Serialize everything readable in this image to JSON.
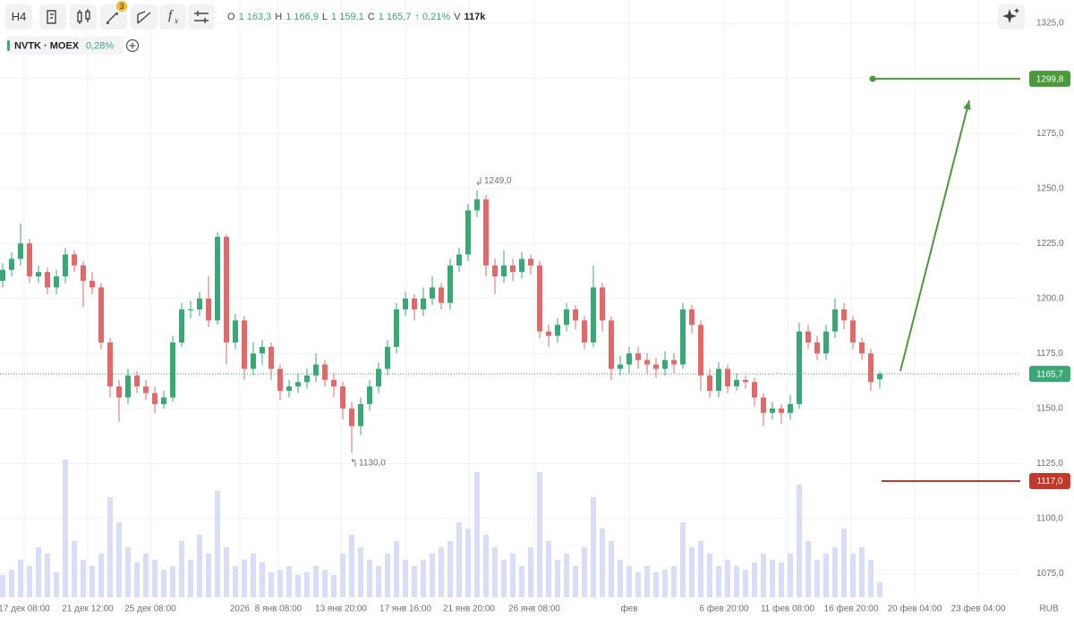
{
  "toolbar": {
    "timeframe": "H4",
    "badge": "3",
    "function_f": "f",
    "function_x": "x"
  },
  "chart_data": {
    "type": "candlestick",
    "symbol": "NVTK · MOEX",
    "symbol_change": "0,28%",
    "ohlc_header": [
      {
        "key": "O",
        "value": "1 163,3"
      },
      {
        "key": "H",
        "value": "1 166,9"
      },
      {
        "key": "L",
        "value": "1 159,1"
      },
      {
        "key": "C",
        "value": "1 165,7"
      }
    ],
    "header_change": "↑ 0,21%",
    "header_volume": {
      "key": "V",
      "value": "117k"
    },
    "currency": "RUB",
    "up_color": "#3aa876",
    "down_color": "#e06a6a",
    "volume_color": "#d9def6",
    "open": [
      1208,
      1213,
      1218,
      1225,
      1210,
      1212,
      1205,
      1210,
      1220,
      1215,
      1208,
      1205,
      1180,
      1160,
      1155,
      1165,
      1160,
      1157,
      1152,
      1155,
      1180,
      1195,
      1195,
      1200,
      1190,
      1228,
      1180,
      1190,
      1168,
      1175,
      1178,
      1168,
      1158,
      1160,
      1162,
      1165,
      1170,
      1163,
      1160,
      1150,
      1142,
      1152,
      1160,
      1168,
      1178,
      1195,
      1200,
      1195,
      1200,
      1205,
      1198,
      1215,
      1220,
      1240,
      1245,
      1215,
      1210,
      1215,
      1212,
      1218,
      1215,
      1185,
      1183,
      1188,
      1195,
      1190,
      1180,
      1205,
      1190,
      1168,
      1170,
      1175,
      1172,
      1170,
      1168,
      1172,
      1170,
      1195,
      1188,
      1165,
      1158,
      1168,
      1160,
      1163,
      1162,
      1155,
      1148,
      1150,
      1148,
      1152,
      1185,
      1180,
      1175,
      1185,
      1195,
      1190,
      1180,
      1175,
      1163.3
    ],
    "high": [
      1216,
      1221,
      1234,
      1227,
      1215,
      1214,
      1213,
      1223,
      1222,
      1217,
      1212,
      1207,
      1182,
      1163,
      1168,
      1167,
      1163,
      1160,
      1158,
      1183,
      1198,
      1199,
      1203,
      1210,
      1230,
      1229,
      1193,
      1192,
      1180,
      1181,
      1180,
      1170,
      1163,
      1166,
      1168,
      1175,
      1172,
      1166,
      1162,
      1153,
      1155,
      1163,
      1171,
      1181,
      1198,
      1203,
      1202,
      1205,
      1210,
      1207,
      1218,
      1223,
      1243,
      1249,
      1247,
      1218,
      1222,
      1218,
      1221,
      1220,
      1217,
      1188,
      1191,
      1198,
      1197,
      1192,
      1215,
      1207,
      1192,
      1174,
      1178,
      1178,
      1175,
      1173,
      1176,
      1175,
      1198,
      1197,
      1190,
      1168,
      1171,
      1170,
      1166,
      1165,
      1164,
      1157,
      1153,
      1152,
      1156,
      1189,
      1188,
      1183,
      1188,
      1200,
      1198,
      1192,
      1182,
      1177,
      1166.9
    ],
    "low": [
      1205,
      1210,
      1215,
      1207,
      1207,
      1202,
      1202,
      1207,
      1212,
      1196,
      1202,
      1177,
      1155,
      1144,
      1152,
      1157,
      1154,
      1148,
      1150,
      1153,
      1178,
      1191,
      1192,
      1187,
      1188,
      1170,
      1177,
      1163,
      1165,
      1170,
      1163,
      1154,
      1155,
      1157,
      1159,
      1162,
      1160,
      1155,
      1145,
      1130,
      1138,
      1149,
      1157,
      1165,
      1175,
      1192,
      1190,
      1192,
      1197,
      1195,
      1195,
      1212,
      1217,
      1237,
      1210,
      1202,
      1207,
      1208,
      1209,
      1211,
      1182,
      1178,
      1180,
      1185,
      1186,
      1177,
      1178,
      1185,
      1163,
      1165,
      1166,
      1168,
      1166,
      1164,
      1165,
      1166,
      1168,
      1184,
      1158,
      1155,
      1155,
      1157,
      1158,
      1159,
      1151,
      1142,
      1145,
      1143,
      1145,
      1150,
      1177,
      1172,
      1172,
      1182,
      1186,
      1177,
      1172,
      1158,
      1159.1
    ],
    "close": [
      1213,
      1218,
      1225,
      1210,
      1212,
      1205,
      1210,
      1220,
      1215,
      1208,
      1205,
      1180,
      1160,
      1155,
      1165,
      1160,
      1157,
      1152,
      1155,
      1180,
      1195,
      1195,
      1200,
      1190,
      1228,
      1180,
      1190,
      1168,
      1175,
      1178,
      1168,
      1158,
      1160,
      1162,
      1165,
      1170,
      1163,
      1160,
      1150,
      1142,
      1152,
      1160,
      1168,
      1178,
      1195,
      1200,
      1195,
      1200,
      1205,
      1198,
      1215,
      1220,
      1240,
      1245,
      1215,
      1210,
      1215,
      1212,
      1218,
      1215,
      1185,
      1183,
      1188,
      1195,
      1190,
      1180,
      1205,
      1190,
      1168,
      1170,
      1175,
      1172,
      1170,
      1168,
      1172,
      1170,
      1195,
      1188,
      1165,
      1158,
      1168,
      1160,
      1163,
      1162,
      1155,
      1148,
      1150,
      1148,
      1152,
      1185,
      1180,
      1175,
      1185,
      1195,
      1190,
      1180,
      1175,
      1162,
      1165.7
    ],
    "volume": [
      18,
      22,
      30,
      25,
      40,
      35,
      20,
      110,
      45,
      30,
      25,
      35,
      80,
      60,
      40,
      28,
      35,
      30,
      22,
      25,
      45,
      30,
      50,
      35,
      85,
      40,
      25,
      30,
      35,
      28,
      20,
      22,
      25,
      18,
      20,
      25,
      22,
      18,
      35,
      50,
      40,
      30,
      25,
      35,
      45,
      30,
      25,
      30,
      35,
      40,
      45,
      60,
      55,
      100,
      50,
      40,
      30,
      35,
      25,
      40,
      100,
      45,
      30,
      35,
      25,
      40,
      80,
      55,
      45,
      30,
      25,
      20,
      25,
      20,
      22,
      25,
      60,
      40,
      45,
      35,
      25,
      30,
      25,
      22,
      28,
      35,
      30,
      28,
      35,
      90,
      45,
      30,
      35,
      40,
      55,
      35,
      40,
      30,
      12
    ],
    "vlim": [
      0,
      100
    ],
    "ylim": [
      1064.2,
      1335.6
    ],
    "yticks": [
      {
        "value": 1075,
        "label": "1075,0"
      },
      {
        "value": 1100,
        "label": "1100,0"
      },
      {
        "value": 1125,
        "label": "1125,0"
      },
      {
        "value": 1150,
        "label": "1150,0"
      },
      {
        "value": 1175,
        "label": "1175,0"
      },
      {
        "value": 1200,
        "label": "1200,0"
      },
      {
        "value": 1225,
        "label": "1225,0"
      },
      {
        "value": 1250,
        "label": "1250,0"
      },
      {
        "value": 1275,
        "label": "1275,0"
      },
      {
        "value": 1300,
        "label": "1300,0"
      },
      {
        "value": 1325,
        "label": "1325,0"
      }
    ],
    "xlim": [
      -0.3,
      113.7
    ],
    "xticks": [
      {
        "value": 2.4,
        "label": "17 дек 08:00"
      },
      {
        "value": 9.5,
        "label": "21 дек 12:00"
      },
      {
        "value": 16.5,
        "label": "25 дек 08:00"
      },
      {
        "value": 26.5,
        "label": "2026"
      },
      {
        "value": 30.8,
        "label": "8 янв 08:00"
      },
      {
        "value": 37.8,
        "label": "13 янв 20:00"
      },
      {
        "value": 45,
        "label": "17 янв 16:00"
      },
      {
        "value": 52.1,
        "label": "21 янв 20:00"
      },
      {
        "value": 59.4,
        "label": "26 янв 08:00"
      },
      {
        "value": 70,
        "label": "фев"
      },
      {
        "value": 80.6,
        "label": "6 фев 20:00"
      },
      {
        "value": 87.7,
        "label": "11 фев 08:00"
      },
      {
        "value": 94.8,
        "label": "16 фев 20:00"
      },
      {
        "value": 101.9,
        "label": "20 фев 04:00"
      },
      {
        "value": 109,
        "label": "23 фев 04:00"
      }
    ],
    "grid": true,
    "last_price": {
      "value": 1165.7,
      "label": "1165,7",
      "color": "#3aa876"
    },
    "levels": [
      {
        "value": 1299.8,
        "label": "1299,8",
        "color": "#4a9a3a",
        "from": 97.2
      },
      {
        "value": 1117.0,
        "label": "1117,0",
        "color": "#c0392b",
        "from": 98.2
      }
    ],
    "annotations": [
      {
        "text": "1249,0",
        "index": 53,
        "value": 1249,
        "side": "above"
      },
      {
        "text": "1130,0",
        "index": 39,
        "value": 1130,
        "side": "below"
      }
    ],
    "trend_arrow": {
      "from_index": 100.3,
      "from_value": 1167,
      "to_index": 108,
      "to_value": 1290,
      "color": "#4a9a3a"
    }
  }
}
